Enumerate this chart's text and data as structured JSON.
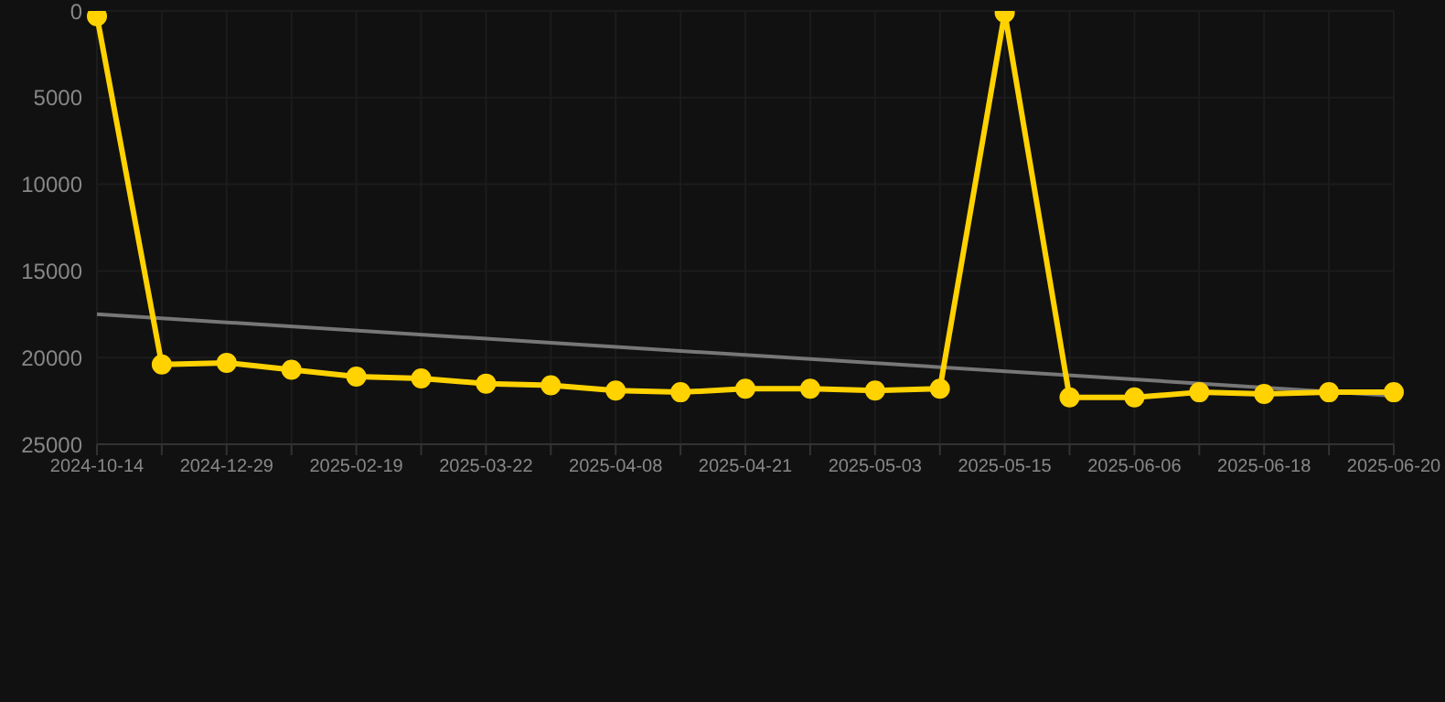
{
  "chart_data": {
    "type": "line",
    "categories": [
      "2024-10-14",
      null,
      "2024-12-29",
      null,
      "2025-02-19",
      null,
      "2025-03-22",
      null,
      "2025-04-08",
      null,
      "2025-04-21",
      null,
      "2025-05-03",
      null,
      "2025-05-15",
      null,
      "2025-06-06",
      null,
      "2025-06-18",
      null,
      "2025-06-20"
    ],
    "series": [
      {
        "type": "line",
        "color": "#777777",
        "marker": "none",
        "values": [
          17500,
          null,
          null,
          null,
          null,
          null,
          null,
          null,
          null,
          null,
          null,
          null,
          null,
          null,
          null,
          null,
          null,
          null,
          null,
          null,
          22200
        ]
      },
      {
        "type": "line",
        "color": "#ffd200",
        "marker": "circle",
        "values": [
          300,
          20400,
          20300,
          20700,
          21100,
          21200,
          21500,
          21600,
          21900,
          22000,
          21800,
          21800,
          21900,
          21800,
          100,
          22300,
          22300,
          22000,
          22100,
          22000,
          22000
        ]
      }
    ],
    "ylim": [
      25000,
      0
    ],
    "yticks": [
      0,
      5000,
      10000,
      15000,
      20000,
      25000
    ],
    "grid": true,
    "legend": false,
    "line_style": "solid"
  }
}
